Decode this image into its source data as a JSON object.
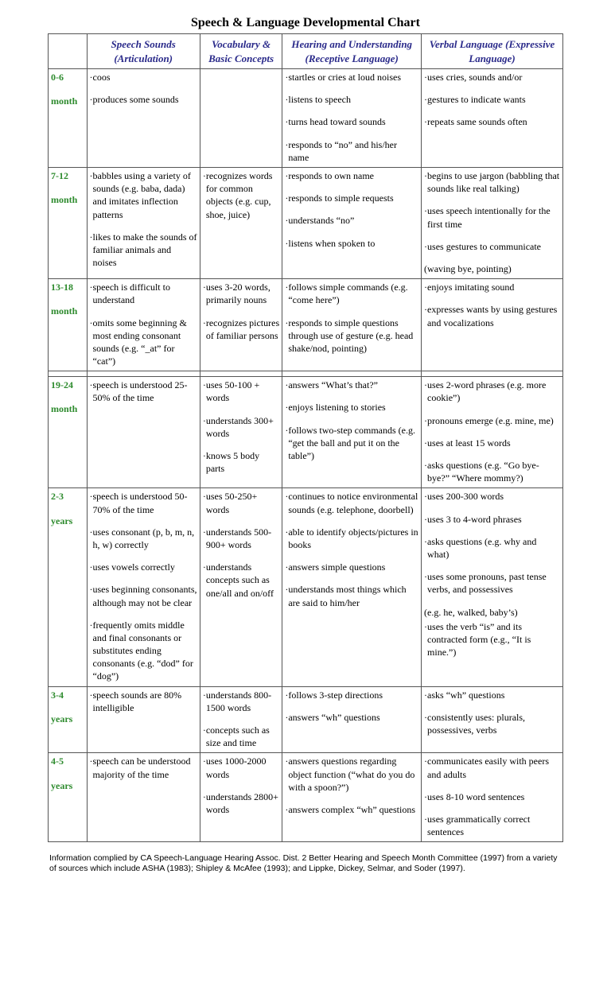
{
  "title": "Speech & Language Developmental Chart",
  "headers": {
    "col1": "Speech Sounds (Articulation)",
    "col2": "Vocabulary & Basic Concepts",
    "col3": "Hearing and Understanding (Receptive Language)",
    "col4": "Verbal Language (Expressive Language)"
  },
  "rows": [
    {
      "age_num": "0-6",
      "age_unit": "month",
      "c1": [
        "coos",
        "produces some sounds"
      ],
      "c2": [],
      "c3": [
        "startles or cries at loud noises",
        "listens to speech",
        "turns head toward sounds",
        "responds to “no” and his/her name"
      ],
      "c4": [
        "uses cries, sounds and/or",
        "gestures to indicate wants",
        "repeats same sounds often"
      ]
    },
    {
      "age_num": "7-12",
      "age_unit": "month",
      "c1": [
        "babbles using a variety of sounds (e.g. baba, dada) and imitates inflection patterns",
        "likes to make the sounds of familiar animals and noises"
      ],
      "c2": [
        "recognizes words for common objects (e.g. cup, shoe, juice)"
      ],
      "c3": [
        "responds to own name",
        "responds to simple requests",
        "understands “no”",
        "listens when spoken to"
      ],
      "c4": [
        "begins to use jargon (babbling that sounds like real talking)",
        "uses speech intentionally for the first time",
        "uses gestures to communicate",
        "(waving bye, pointing)"
      ]
    },
    {
      "age_num": "13-18",
      "age_unit": "month",
      "c1": [
        "speech is difficult to understand",
        "omits some beginning & most ending consonant sounds (e.g. “_at” for “cat”)"
      ],
      "c2": [
        "uses 3-20 words, primarily nouns",
        "recognizes pictures of familiar persons"
      ],
      "c3": [
        "follows simple commands (e.g. “come here”)",
        "responds to simple questions through use of gesture (e.g. head shake/nod, pointing)"
      ],
      "c4": [
        "enjoys imitating sound",
        "expresses wants by using gestures and vocalizations"
      ]
    },
    {
      "age_num": "19-24",
      "age_unit": "month",
      "c1": [
        "speech is understood 25-50% of the time"
      ],
      "c2": [
        "uses 50-100 + words",
        "understands 300+ words",
        "knows 5 body parts"
      ],
      "c3": [
        "answers “What’s that?”",
        "enjoys listening to stories",
        "follows two-step commands (e.g. “get the ball and put it on the table”)"
      ],
      "c4": [
        "uses 2-word phrases (e.g. more cookie”)",
        "pronouns emerge (e.g. mine, me)",
        "uses at least 15 words",
        "asks questions (e.g. “Go bye-bye?” “Where mommy?)"
      ]
    },
    {
      "age_num": "2-3",
      "age_unit": "years",
      "c1": [
        "speech is understood 50-70% of the time",
        "uses consonant (p, b, m, n, h, w) correctly",
        "uses vowels correctly",
        "uses beginning consonants, although may not be clear",
        "frequently omits middle and final consonants or substitutes ending consonants (e.g. “dod” for “dog”)"
      ],
      "c2": [
        "uses 50-250+ words",
        "understands 500-900+ words",
        "understands concepts such as one/all and on/off"
      ],
      "c3": [
        "continues to notice environmental sounds (e.g. telephone, doorbell)",
        "able to identify objects/pictures in books",
        "answers simple questions",
        "understands most things which are said to him/her"
      ],
      "c4": [
        "uses 200-300 words",
        "uses 3 to 4-word phrases",
        "asks questions (e.g. why and what)",
        "uses some pronouns, past tense verbs, and possessives",
        "(e.g. he, walked, baby’s)",
        "uses the verb “is” and its contracted form (e.g., “It is mine.”)"
      ]
    },
    {
      "age_num": "3-4",
      "age_unit": "years",
      "c1": [
        "speech sounds are  80% intelligible"
      ],
      "c2": [
        "understands 800-1500 words",
        "concepts such as size and time"
      ],
      "c3": [
        "follows 3-step directions",
        "answers “wh” questions"
      ],
      "c4": [
        "asks “wh” questions",
        "consistently uses: plurals, possessives, verbs"
      ]
    },
    {
      "age_num": "4-5",
      "age_unit": "years",
      "c1": [
        "speech can be understood majority of the time"
      ],
      "c2": [
        "uses 1000-2000 words",
        "understands 2800+ words"
      ],
      "c3": [
        "answers questions regarding object function (“what do you do with a spoon?”)",
        "answers complex “wh” questions"
      ],
      "c4": [
        "communicates easily with peers and adults",
        "uses 8-10 word sentences",
        "uses grammatically correct sentences"
      ]
    }
  ],
  "footnote": "Information complied by CA Speech-Language Hearing Assoc. Dist. 2 Better Hearing and Speech Month Committee (1997) from a variety of sources which include ASHA (1983); Shipley & McAfee (1993); and Lippke, Dickey, Selmar, and Soder (1997).",
  "colors": {
    "header_text": "#2a2a8a",
    "age_text": "#2e8b2e",
    "border": "#555555",
    "background": "#ffffff"
  }
}
